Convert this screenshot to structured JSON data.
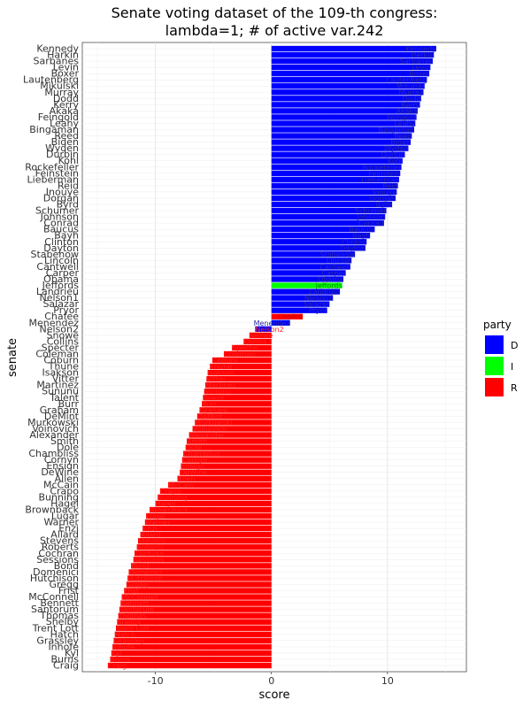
{
  "chart_data": {
    "type": "bar",
    "orientation": "horizontal",
    "title_line1": "Senate voting dataset of the 109-th congress:",
    "title_line2": "lambda=1; # of active var.242",
    "xlabel": "score",
    "ylabel": "senate",
    "xlim": [
      -16.3,
      16.8
    ],
    "xticks": [
      -10,
      0,
      10
    ],
    "xtick_labels": [
      "-10",
      "0",
      "10"
    ],
    "grid": true,
    "legend": {
      "title": "party",
      "placement": "right",
      "items": [
        {
          "label": "D",
          "color": "#0000FF"
        },
        {
          "label": "I",
          "color": "#00FF00"
        },
        {
          "label": "R",
          "color": "#FF0000"
        }
      ]
    },
    "party_colors": {
      "D": "#0000FF",
      "I": "#00FF00",
      "R": "#FF0000"
    },
    "senators": [
      {
        "name": "Kennedy",
        "party": "D",
        "score": 14.2
      },
      {
        "name": "Harkin",
        "party": "D",
        "score": 14.0
      },
      {
        "name": "Sarbanes",
        "party": "D",
        "score": 13.9
      },
      {
        "name": "Levin",
        "party": "D",
        "score": 13.7
      },
      {
        "name": "Boxer",
        "party": "D",
        "score": 13.6
      },
      {
        "name": "Lautenberg",
        "party": "D",
        "score": 13.4
      },
      {
        "name": "Mikulski",
        "party": "D",
        "score": 13.2
      },
      {
        "name": "Murray",
        "party": "D",
        "score": 13.1
      },
      {
        "name": "Dodd",
        "party": "D",
        "score": 12.9
      },
      {
        "name": "Kerry",
        "party": "D",
        "score": 12.8
      },
      {
        "name": "Akaka",
        "party": "D",
        "score": 12.6
      },
      {
        "name": "Feingold",
        "party": "D",
        "score": 12.5
      },
      {
        "name": "Leahy",
        "party": "D",
        "score": 12.4
      },
      {
        "name": "Bingaman",
        "party": "D",
        "score": 12.3
      },
      {
        "name": "Reed",
        "party": "D",
        "score": 12.1
      },
      {
        "name": "Biden",
        "party": "D",
        "score": 12.0
      },
      {
        "name": "Wyden",
        "party": "D",
        "score": 11.8
      },
      {
        "name": "Durbin",
        "party": "D",
        "score": 11.5
      },
      {
        "name": "Kohl",
        "party": "D",
        "score": 11.3
      },
      {
        "name": "Rockefeller",
        "party": "D",
        "score": 11.2
      },
      {
        "name": "Feinstein",
        "party": "D",
        "score": 11.1
      },
      {
        "name": "Lieberman",
        "party": "D",
        "score": 11.0
      },
      {
        "name": "Reid",
        "party": "D",
        "score": 10.9
      },
      {
        "name": "Inouye",
        "party": "D",
        "score": 10.8
      },
      {
        "name": "Dorgan",
        "party": "D",
        "score": 10.7
      },
      {
        "name": "Byrd",
        "party": "D",
        "score": 10.4
      },
      {
        "name": "Schumer",
        "party": "D",
        "score": 9.9
      },
      {
        "name": "Johnson",
        "party": "D",
        "score": 9.8
      },
      {
        "name": "Conrad",
        "party": "D",
        "score": 9.7
      },
      {
        "name": "Baucus",
        "party": "D",
        "score": 8.9
      },
      {
        "name": "Bayh",
        "party": "D",
        "score": 8.5
      },
      {
        "name": "Clinton",
        "party": "D",
        "score": 8.2
      },
      {
        "name": "Dayton",
        "party": "D",
        "score": 8.1
      },
      {
        "name": "Stabenow",
        "party": "D",
        "score": 7.2
      },
      {
        "name": "Lincoln",
        "party": "D",
        "score": 6.9
      },
      {
        "name": "Cantwell",
        "party": "D",
        "score": 6.8
      },
      {
        "name": "Carper",
        "party": "D",
        "score": 6.4
      },
      {
        "name": "Obama",
        "party": "D",
        "score": 6.2
      },
      {
        "name": "Jeffords",
        "party": "I",
        "score": 6.1
      },
      {
        "name": "Landrieu",
        "party": "D",
        "score": 5.9
      },
      {
        "name": "Nelson1",
        "party": "D",
        "score": 5.3
      },
      {
        "name": "Salazar",
        "party": "D",
        "score": 5.0
      },
      {
        "name": "Pryor",
        "party": "D",
        "score": 4.8
      },
      {
        "name": "Chafee",
        "party": "R",
        "score": 2.7
      },
      {
        "name": "Menendez",
        "party": "D",
        "score": 1.6
      },
      {
        "name": "Nelson2",
        "party": "D",
        "score": -1.4
      },
      {
        "name": "Snowe",
        "party": "R",
        "score": -1.9
      },
      {
        "name": "Collins",
        "party": "R",
        "score": -2.4
      },
      {
        "name": "Specter",
        "party": "R",
        "score": -3.4
      },
      {
        "name": "Coleman",
        "party": "R",
        "score": -4.1
      },
      {
        "name": "Coburn",
        "party": "R",
        "score": -5.1
      },
      {
        "name": "Thune",
        "party": "R",
        "score": -5.3
      },
      {
        "name": "Isakson",
        "party": "R",
        "score": -5.5
      },
      {
        "name": "Vitter",
        "party": "R",
        "score": -5.6
      },
      {
        "name": "Martinez",
        "party": "R",
        "score": -5.7
      },
      {
        "name": "Sununu",
        "party": "R",
        "score": -5.8
      },
      {
        "name": "Talent",
        "party": "R",
        "score": -5.9
      },
      {
        "name": "Burr",
        "party": "R",
        "score": -6.0
      },
      {
        "name": "Graham",
        "party": "R",
        "score": -6.2
      },
      {
        "name": "DeMint",
        "party": "R",
        "score": -6.4
      },
      {
        "name": "Murkowski",
        "party": "R",
        "score": -6.6
      },
      {
        "name": "Voinovich",
        "party": "R",
        "score": -6.8
      },
      {
        "name": "Alexander",
        "party": "R",
        "score": -7.1
      },
      {
        "name": "Smith",
        "party": "R",
        "score": -7.3
      },
      {
        "name": "Dole",
        "party": "R",
        "score": -7.4
      },
      {
        "name": "Chambliss",
        "party": "R",
        "score": -7.6
      },
      {
        "name": "Cornyn",
        "party": "R",
        "score": -7.7
      },
      {
        "name": "Ensign",
        "party": "R",
        "score": -7.8
      },
      {
        "name": "DeWine",
        "party": "R",
        "score": -7.9
      },
      {
        "name": "Allen",
        "party": "R",
        "score": -8.1
      },
      {
        "name": "McCain",
        "party": "R",
        "score": -8.9
      },
      {
        "name": "Crapo",
        "party": "R",
        "score": -9.6
      },
      {
        "name": "Bunning",
        "party": "R",
        "score": -9.8
      },
      {
        "name": "Hagel",
        "party": "R",
        "score": -10.0
      },
      {
        "name": "Brownback",
        "party": "R",
        "score": -10.5
      },
      {
        "name": "Lugar",
        "party": "R",
        "score": -10.8
      },
      {
        "name": "Warner",
        "party": "R",
        "score": -10.9
      },
      {
        "name": "Enzi",
        "party": "R",
        "score": -11.1
      },
      {
        "name": "Allard",
        "party": "R",
        "score": -11.3
      },
      {
        "name": "Stevens",
        "party": "R",
        "score": -11.5
      },
      {
        "name": "Roberts",
        "party": "R",
        "score": -11.6
      },
      {
        "name": "Cochran",
        "party": "R",
        "score": -11.8
      },
      {
        "name": "Sessions",
        "party": "R",
        "score": -11.9
      },
      {
        "name": "Bond",
        "party": "R",
        "score": -12.1
      },
      {
        "name": "Domenici",
        "party": "R",
        "score": -12.3
      },
      {
        "name": "Hutchison",
        "party": "R",
        "score": -12.4
      },
      {
        "name": "Gregg",
        "party": "R",
        "score": -12.5
      },
      {
        "name": "Frist",
        "party": "R",
        "score": -12.7
      },
      {
        "name": "McConnell",
        "party": "R",
        "score": -12.9
      },
      {
        "name": "Bennett",
        "party": "R",
        "score": -13.0
      },
      {
        "name": "Santorum",
        "party": "R",
        "score": -13.1
      },
      {
        "name": "Thomas",
        "party": "R",
        "score": -13.2
      },
      {
        "name": "Shelby",
        "party": "R",
        "score": -13.3
      },
      {
        "name": "Trent Lott",
        "party": "R",
        "score": -13.4
      },
      {
        "name": "Hatch",
        "party": "R",
        "score": -13.5
      },
      {
        "name": "Grassley",
        "party": "R",
        "score": -13.6
      },
      {
        "name": "Inhofe",
        "party": "R",
        "score": -13.7
      },
      {
        "name": "Kyl",
        "party": "R",
        "score": -13.8
      },
      {
        "name": "Burns",
        "party": "R",
        "score": -13.9
      },
      {
        "name": "Craig",
        "party": "R",
        "score": -14.1
      }
    ]
  }
}
